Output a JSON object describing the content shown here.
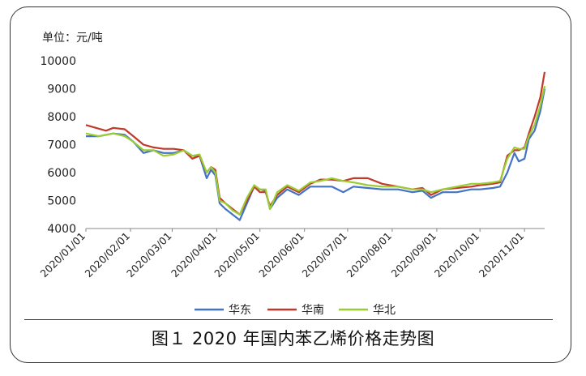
{
  "chart_data": {
    "type": "line",
    "unit_label": "单位：元/吨",
    "ylim": [
      4000,
      10000
    ],
    "yticks": [
      4000,
      5000,
      6000,
      7000,
      8000,
      9000,
      10000
    ],
    "x_tick_labels": [
      "2020/01/01",
      "2020/02/01",
      "2020/03/01",
      "2020/04/01",
      "2020/05/01",
      "2020/06/01",
      "2020/07/01",
      "2020/08/01",
      "2020/09/01",
      "2020/10/01",
      "2020/11/01"
    ],
    "xlim": [
      "2020/01/01",
      "2020/11/15"
    ],
    "grid": false,
    "legend_position": "bottom",
    "series": [
      {
        "name": "华东",
        "color": "#4472C4",
        "points": [
          [
            "2020/01/01",
            7300
          ],
          [
            "2020/01/10",
            7300
          ],
          [
            "2020/01/20",
            7400
          ],
          [
            "2020/01/28",
            7350
          ],
          [
            "2020/02/03",
            7100
          ],
          [
            "2020/02/10",
            6700
          ],
          [
            "2020/02/17",
            6800
          ],
          [
            "2020/02/24",
            6700
          ],
          [
            "2020/03/02",
            6700
          ],
          [
            "2020/03/09",
            6800
          ],
          [
            "2020/03/15",
            6600
          ],
          [
            "2020/03/20",
            6600
          ],
          [
            "2020/03/25",
            5800
          ],
          [
            "2020/03/28",
            6100
          ],
          [
            "2020/03/31",
            5900
          ],
          [
            "2020/04/03",
            4900
          ],
          [
            "2020/04/07",
            4700
          ],
          [
            "2020/04/12",
            4500
          ],
          [
            "2020/04/17",
            4300
          ],
          [
            "2020/04/22",
            4900
          ],
          [
            "2020/04/27",
            5500
          ],
          [
            "2020/05/01",
            5400
          ],
          [
            "2020/05/05",
            5350
          ],
          [
            "2020/05/08",
            4700
          ],
          [
            "2020/05/13",
            5100
          ],
          [
            "2020/05/20",
            5400
          ],
          [
            "2020/05/28",
            5200
          ],
          [
            "2020/06/05",
            5500
          ],
          [
            "2020/06/12",
            5500
          ],
          [
            "2020/06/20",
            5500
          ],
          [
            "2020/06/28",
            5300
          ],
          [
            "2020/07/05",
            5500
          ],
          [
            "2020/07/15",
            5450
          ],
          [
            "2020/07/25",
            5400
          ],
          [
            "2020/08/05",
            5400
          ],
          [
            "2020/08/15",
            5300
          ],
          [
            "2020/08/22",
            5350
          ],
          [
            "2020/08/28",
            5100
          ],
          [
            "2020/09/05",
            5300
          ],
          [
            "2020/09/15",
            5300
          ],
          [
            "2020/09/25",
            5400
          ],
          [
            "2020/10/01",
            5400
          ],
          [
            "2020/10/10",
            5450
          ],
          [
            "2020/10/15",
            5500
          ],
          [
            "2020/10/20",
            6000
          ],
          [
            "2020/10/25",
            6700
          ],
          [
            "2020/10/28",
            6400
          ],
          [
            "2020/11/01",
            6500
          ],
          [
            "2020/11/04",
            7200
          ],
          [
            "2020/11/08",
            7500
          ],
          [
            "2020/11/12",
            8200
          ],
          [
            "2020/11/15",
            9000
          ]
        ]
      },
      {
        "name": "华南",
        "color": "#C0392B",
        "points": [
          [
            "2020/01/01",
            7700
          ],
          [
            "2020/01/08",
            7600
          ],
          [
            "2020/01/15",
            7500
          ],
          [
            "2020/01/20",
            7600
          ],
          [
            "2020/01/28",
            7550
          ],
          [
            "2020/02/03",
            7300
          ],
          [
            "2020/02/10",
            7000
          ],
          [
            "2020/02/17",
            6900
          ],
          [
            "2020/02/24",
            6850
          ],
          [
            "2020/03/02",
            6850
          ],
          [
            "2020/03/09",
            6800
          ],
          [
            "2020/03/15",
            6500
          ],
          [
            "2020/03/20",
            6600
          ],
          [
            "2020/03/25",
            6000
          ],
          [
            "2020/03/28",
            6200
          ],
          [
            "2020/03/31",
            6100
          ],
          [
            "2020/04/03",
            5100
          ],
          [
            "2020/04/07",
            4900
          ],
          [
            "2020/04/12",
            4700
          ],
          [
            "2020/04/17",
            4500
          ],
          [
            "2020/04/22",
            5000
          ],
          [
            "2020/04/27",
            5500
          ],
          [
            "2020/05/01",
            5300
          ],
          [
            "2020/05/05",
            5300
          ],
          [
            "2020/05/08",
            4800
          ],
          [
            "2020/05/13",
            5200
          ],
          [
            "2020/05/20",
            5500
          ],
          [
            "2020/05/28",
            5300
          ],
          [
            "2020/06/05",
            5600
          ],
          [
            "2020/06/12",
            5750
          ],
          [
            "2020/06/20",
            5750
          ],
          [
            "2020/06/28",
            5700
          ],
          [
            "2020/07/05",
            5800
          ],
          [
            "2020/07/15",
            5800
          ],
          [
            "2020/07/25",
            5600
          ],
          [
            "2020/08/05",
            5500
          ],
          [
            "2020/08/15",
            5400
          ],
          [
            "2020/08/22",
            5450
          ],
          [
            "2020/08/28",
            5200
          ],
          [
            "2020/09/05",
            5400
          ],
          [
            "2020/09/15",
            5450
          ],
          [
            "2020/09/25",
            5500
          ],
          [
            "2020/10/01",
            5550
          ],
          [
            "2020/10/10",
            5600
          ],
          [
            "2020/10/15",
            5650
          ],
          [
            "2020/10/20",
            6600
          ],
          [
            "2020/10/25",
            6800
          ],
          [
            "2020/10/28",
            6800
          ],
          [
            "2020/11/01",
            6900
          ],
          [
            "2020/11/04",
            7400
          ],
          [
            "2020/11/08",
            8000
          ],
          [
            "2020/11/12",
            8700
          ],
          [
            "2020/11/15",
            9600
          ]
        ]
      },
      {
        "name": "华北",
        "color": "#9ACD32",
        "points": [
          [
            "2020/01/01",
            7400
          ],
          [
            "2020/01/10",
            7300
          ],
          [
            "2020/01/20",
            7400
          ],
          [
            "2020/01/28",
            7300
          ],
          [
            "2020/02/03",
            7100
          ],
          [
            "2020/02/10",
            6800
          ],
          [
            "2020/02/17",
            6800
          ],
          [
            "2020/02/24",
            6600
          ],
          [
            "2020/03/02",
            6650
          ],
          [
            "2020/03/09",
            6800
          ],
          [
            "2020/03/15",
            6600
          ],
          [
            "2020/03/20",
            6650
          ],
          [
            "2020/03/25",
            6000
          ],
          [
            "2020/03/28",
            6200
          ],
          [
            "2020/03/31",
            6000
          ],
          [
            "2020/04/03",
            5000
          ],
          [
            "2020/04/07",
            4900
          ],
          [
            "2020/04/12",
            4650
          ],
          [
            "2020/04/17",
            4500
          ],
          [
            "2020/04/22",
            5100
          ],
          [
            "2020/04/27",
            5550
          ],
          [
            "2020/05/01",
            5400
          ],
          [
            "2020/05/05",
            5400
          ],
          [
            "2020/05/08",
            4700
          ],
          [
            "2020/05/13",
            5300
          ],
          [
            "2020/05/20",
            5550
          ],
          [
            "2020/05/28",
            5350
          ],
          [
            "2020/06/05",
            5650
          ],
          [
            "2020/06/12",
            5700
          ],
          [
            "2020/06/20",
            5800
          ],
          [
            "2020/06/28",
            5700
          ],
          [
            "2020/07/05",
            5650
          ],
          [
            "2020/07/15",
            5550
          ],
          [
            "2020/07/25",
            5500
          ],
          [
            "2020/08/05",
            5500
          ],
          [
            "2020/08/15",
            5400
          ],
          [
            "2020/08/22",
            5400
          ],
          [
            "2020/08/28",
            5300
          ],
          [
            "2020/09/05",
            5400
          ],
          [
            "2020/09/15",
            5500
          ],
          [
            "2020/09/25",
            5600
          ],
          [
            "2020/10/01",
            5600
          ],
          [
            "2020/10/10",
            5650
          ],
          [
            "2020/10/15",
            5700
          ],
          [
            "2020/10/20",
            6500
          ],
          [
            "2020/10/25",
            6900
          ],
          [
            "2020/10/28",
            6850
          ],
          [
            "2020/11/01",
            6850
          ],
          [
            "2020/11/04",
            7300
          ],
          [
            "2020/11/08",
            7700
          ],
          [
            "2020/11/12",
            8400
          ],
          [
            "2020/11/15",
            9100
          ]
        ]
      }
    ]
  },
  "caption": "图１ 2020 年国内苯乙烯价格走势图"
}
